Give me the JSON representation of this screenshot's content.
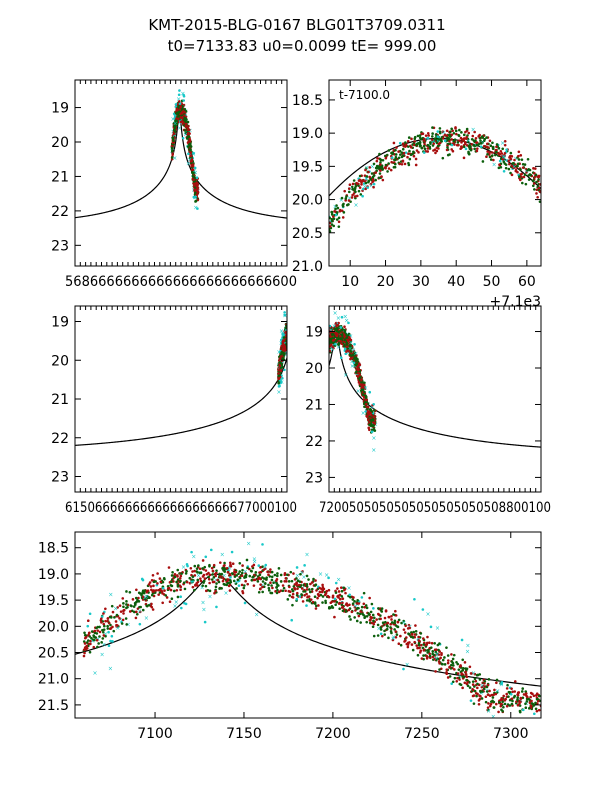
{
  "figure": {
    "title_line1": "KMT-2015-BLG-0167 BLG01T3709.0311",
    "title_line2": "t0=7133.83 u0=0.0099 tE= 999.00"
  },
  "colors": {
    "dark_green": "#0b5e0b",
    "dark_red": "#a80e0e",
    "cyan": "#18c8c8",
    "model": "#000000"
  },
  "model": {
    "t0": 7133.83,
    "u0": 0.0099,
    "tE": 999.0,
    "base_mag": 22.4,
    "depth": 3.4
  },
  "chart_data": [
    {
      "id": "overview",
      "type": "scatter",
      "xlim": [
        6100,
        8200
      ],
      "ylim": [
        23.6,
        18.2
      ],
      "y_ticks": [
        19,
        20,
        21,
        22,
        23
      ],
      "x_tick_text": "5686666666666666666666666600",
      "annotation": "",
      "offset_text": "",
      "data_window": [
        7060,
        7320
      ],
      "model_range": [
        6100,
        8200
      ]
    },
    {
      "id": "zoom-peak",
      "type": "scatter",
      "xlim": [
        4,
        64
      ],
      "ylim": [
        21.0,
        18.2
      ],
      "y_ticks": [
        18.5,
        19.0,
        19.5,
        20.0,
        20.5,
        21.0
      ],
      "x_ticks": [
        10,
        20,
        30,
        40,
        50,
        60
      ],
      "annotation": "t-7100.0",
      "offset_text": "+7.1e3",
      "x_offset": 7100,
      "data_window": [
        7104,
        7164
      ]
    },
    {
      "id": "pre-peak",
      "type": "scatter",
      "xlim": [
        6100,
        7100
      ],
      "ylim": [
        23.4,
        18.6
      ],
      "y_ticks": [
        19,
        20,
        21,
        22,
        23
      ],
      "x_tick_text": "6150666666666666666666677000100",
      "annotation": "",
      "offset_text": "",
      "data_window": [
        7060,
        7100
      ],
      "model_range": [
        6100,
        7100
      ]
    },
    {
      "id": "post-peak",
      "type": "scatter",
      "xlim": [
        7100,
        8100
      ],
      "ylim": [
        23.4,
        18.3
      ],
      "y_ticks": [
        19,
        20,
        21,
        22,
        23
      ],
      "x_tick_text": "7200505050505050505050508800100",
      "annotation": "",
      "offset_text": "",
      "data_window": [
        7100,
        7320
      ],
      "model_range": [
        7100,
        8100
      ]
    },
    {
      "id": "full-lightcurve",
      "type": "scatter",
      "xlim": [
        7055,
        7317
      ],
      "ylim": [
        21.75,
        18.2
      ],
      "y_ticks": [
        18.5,
        19.0,
        19.5,
        20.0,
        20.5,
        21.0,
        21.5
      ],
      "x_ticks": [
        7100,
        7150,
        7200,
        7250,
        7300
      ],
      "annotation": "",
      "offset_text": "",
      "data_window": [
        7060,
        7317
      ],
      "model_range": [
        7055,
        7317
      ]
    }
  ]
}
